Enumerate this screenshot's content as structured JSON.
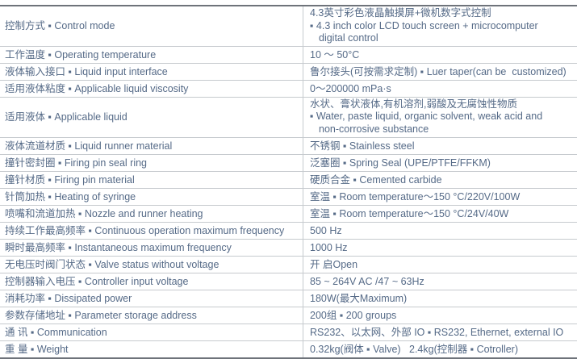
{
  "colors": {
    "text": "#556a87",
    "border_outer": "#6e737a",
    "border_inner": "#c6cace"
  },
  "table": {
    "rows": [
      {
        "label": "控制方式 ▪ Control mode",
        "value": "4.3英寸彩色液晶触摸屏+微机数字式控制",
        "value2": "▪ 4.3 inch color LCD touch screen + microcomputer",
        "value3": "digital control"
      },
      {
        "label": "工作温度 ▪ Operating temperature",
        "value": "10 ～ 50°C"
      },
      {
        "label": "液体输入接口 ▪ Liquid input interface",
        "value": "鲁尔接头(可按需求定制) ▪ Luer taper(can be  customized)"
      },
      {
        "label": "适用液体粘度 ▪ Applicable liquid viscosity",
        "value": "0～200000 mPa·s"
      },
      {
        "label": "适用液体 ▪ Applicable liquid",
        "value": "水状、膏状液体,有机溶剂,弱酸及无腐蚀性物质",
        "value2": "▪ Water, paste liquid, organic solvent, weak acid and",
        "value3": "non-corrosive substance"
      },
      {
        "label": "液体流道材质 ▪ Liquid runner material",
        "value": "不锈钢 ▪ Stainless steel"
      },
      {
        "label": "撞针密封圈 ▪ Firing pin seal ring",
        "value": "泛塞圈 ▪ Spring Seal (UPE/PTFE/FFKM)"
      },
      {
        "label": "撞针材质 ▪ Firing pin material",
        "value": "硬质合金 ▪ Cemented carbide"
      },
      {
        "label": "针筒加热 ▪ Heating of syringe",
        "value": "室温 ▪ Room temperature～150 °C/220V/100W"
      },
      {
        "label": "喷嘴和流道加热 ▪ Nozzle and runner heating",
        "value": "室温 ▪ Room temperature～150 °C/24V/40W"
      },
      {
        "label": "持续工作最高频率 ▪ Continuous operation maximum frequency",
        "value": "500 Hz"
      },
      {
        "label": "瞬时最高频率 ▪ Instantaneous maximum frequency",
        "value": "1000 Hz"
      },
      {
        "label": "无电压时阀门状态 ▪ Valve status without voltage",
        "value": "开 启Open"
      },
      {
        "label": "控制器输入电压 ▪ Controller input voltage",
        "value": "85 ~ 264V AC /47 ~ 63Hz"
      },
      {
        "label": "消耗功率 ▪ Dissipated power",
        "value": "180W(最大Maximum)"
      },
      {
        "label": "参数存储地址 ▪ Parameter storage address",
        "value": "200组 ▪ 200 groups"
      },
      {
        "label": "通 讯 ▪ Communication",
        "value": "RS232、以太网、外部 IO ▪ RS232, Ethernet, external IO"
      },
      {
        "label": "重 量 ▪ Weight",
        "value": "0.32kg(阀体 ▪ Valve)   2.4kg(控制器 ▪ Cotroller)"
      }
    ]
  }
}
